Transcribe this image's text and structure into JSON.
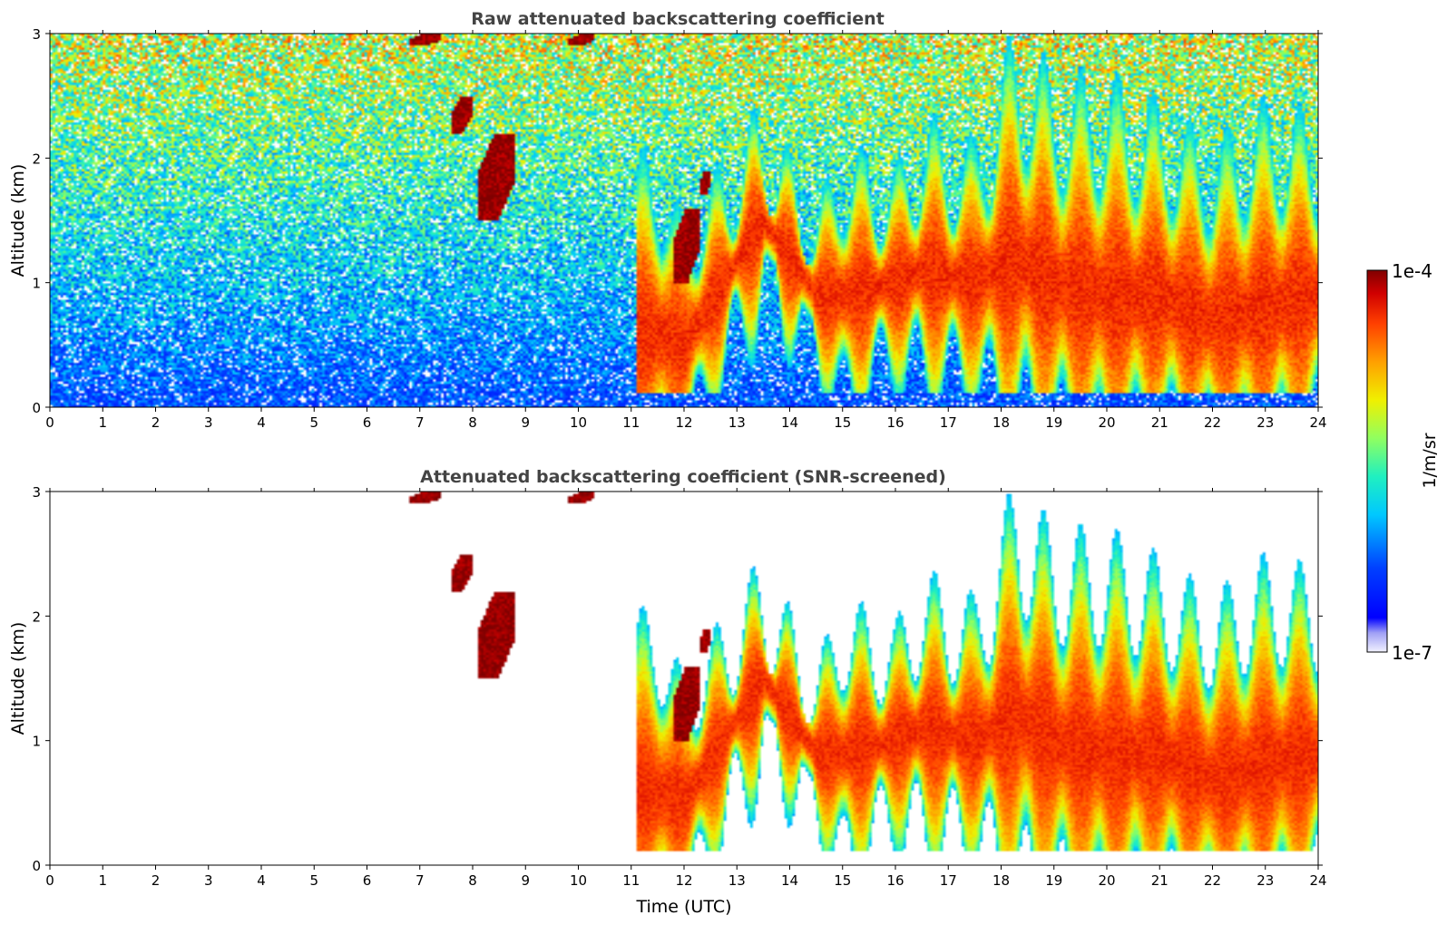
{
  "chart_data": [
    {
      "type": "heatmap",
      "title": "Raw attenuated backscattering coefficient",
      "xlabel": "",
      "ylabel": "Altitude (km)",
      "xlim": [
        0,
        24
      ],
      "ylim": [
        0,
        3
      ],
      "x_ticks": [
        "0",
        "1",
        "2",
        "3",
        "4",
        "5",
        "6",
        "7",
        "8",
        "9",
        "10",
        "11",
        "12",
        "13",
        "14",
        "15",
        "16",
        "17",
        "18",
        "19",
        "20",
        "21",
        "22",
        "23",
        "24"
      ],
      "y_ticks": [
        "0",
        "1",
        "2",
        "3"
      ],
      "grid": false,
      "screened": false,
      "colorscale": "jet (log scale)",
      "features": {
        "noise_floor_log10": -5.4,
        "boundary_layer": [
          {
            "time": 0,
            "height_km": 0.6
          },
          {
            "time": 2,
            "height_km": 0.45
          },
          {
            "time": 4,
            "height_km": 0.35
          },
          {
            "time": 7,
            "height_km": 0.3
          },
          {
            "time": 11,
            "height_km": 0.3
          },
          {
            "time": 14,
            "height_km": 0.35
          },
          {
            "time": 18,
            "height_km": 0.45
          },
          {
            "time": 21,
            "height_km": 0.4
          },
          {
            "time": 24,
            "height_km": 0.3
          }
        ],
        "aerosol_layer_top": [
          {
            "time": 11.5,
            "top_km": 1.9,
            "peak_km": 0.6
          },
          {
            "time": 12.0,
            "top_km": 1.4,
            "peak_km": 0.5
          },
          {
            "time": 13.5,
            "top_km": 2.3,
            "peak_km": 1.5
          },
          {
            "time": 14.5,
            "top_km": 1.5,
            "peak_km": 0.9
          },
          {
            "time": 15.0,
            "top_km": 2.0,
            "peak_km": 0.9
          },
          {
            "time": 16.0,
            "top_km": 1.8,
            "peak_km": 1.0
          },
          {
            "time": 16.5,
            "top_km": 2.2,
            "peak_km": 1.1
          },
          {
            "time": 17.5,
            "top_km": 2.0,
            "peak_km": 1.0
          },
          {
            "time": 18.3,
            "top_km": 2.9,
            "peak_km": 1.2
          },
          {
            "time": 19.0,
            "top_km": 2.5,
            "peak_km": 1.0
          },
          {
            "time": 20.0,
            "top_km": 2.5,
            "peak_km": 0.9
          },
          {
            "time": 21.0,
            "top_km": 2.3,
            "peak_km": 0.9
          },
          {
            "time": 22.0,
            "top_km": 2.0,
            "peak_km": 0.7
          },
          {
            "time": 23.0,
            "top_km": 2.3,
            "peak_km": 0.8
          },
          {
            "time": 24.0,
            "top_km": 2.2,
            "peak_km": 0.9
          }
        ],
        "dense_layers": [
          {
            "t0": 7.6,
            "t1": 8.0,
            "z0": 2.2,
            "z1": 2.5
          },
          {
            "t0": 8.1,
            "t1": 8.8,
            "z0": 1.5,
            "z1": 2.2
          },
          {
            "t0": 11.8,
            "t1": 12.3,
            "z0": 1.0,
            "z1": 1.6
          },
          {
            "t0": 12.3,
            "t1": 12.5,
            "z0": 1.7,
            "z1": 1.9
          },
          {
            "t0": 6.8,
            "t1": 7.4,
            "z0": 2.9,
            "z1": 3.0
          },
          {
            "t0": 9.8,
            "t1": 10.3,
            "z0": 2.9,
            "z1": 3.0
          }
        ]
      }
    },
    {
      "type": "heatmap",
      "title": "Attenuated backscattering coefficient (SNR-screened)",
      "xlabel": "Time (UTC)",
      "ylabel": "Altitude (km)",
      "xlim": [
        0,
        24
      ],
      "ylim": [
        0,
        3
      ],
      "x_ticks": [
        "0",
        "1",
        "2",
        "3",
        "4",
        "5",
        "6",
        "7",
        "8",
        "9",
        "10",
        "11",
        "12",
        "13",
        "14",
        "15",
        "16",
        "17",
        "18",
        "19",
        "20",
        "21",
        "22",
        "23",
        "24"
      ],
      "y_ticks": [
        "0",
        "1",
        "2",
        "3"
      ],
      "grid": false,
      "screened": true,
      "colorscale": "jet (log scale)",
      "features": "same field as the raw panel with low signal-to-noise pixels removed"
    }
  ],
  "colorbar": {
    "label": "1/m/sr",
    "max_label": "1e-4",
    "min_label": "1e-7",
    "range_log10": [
      -7,
      -4
    ]
  }
}
